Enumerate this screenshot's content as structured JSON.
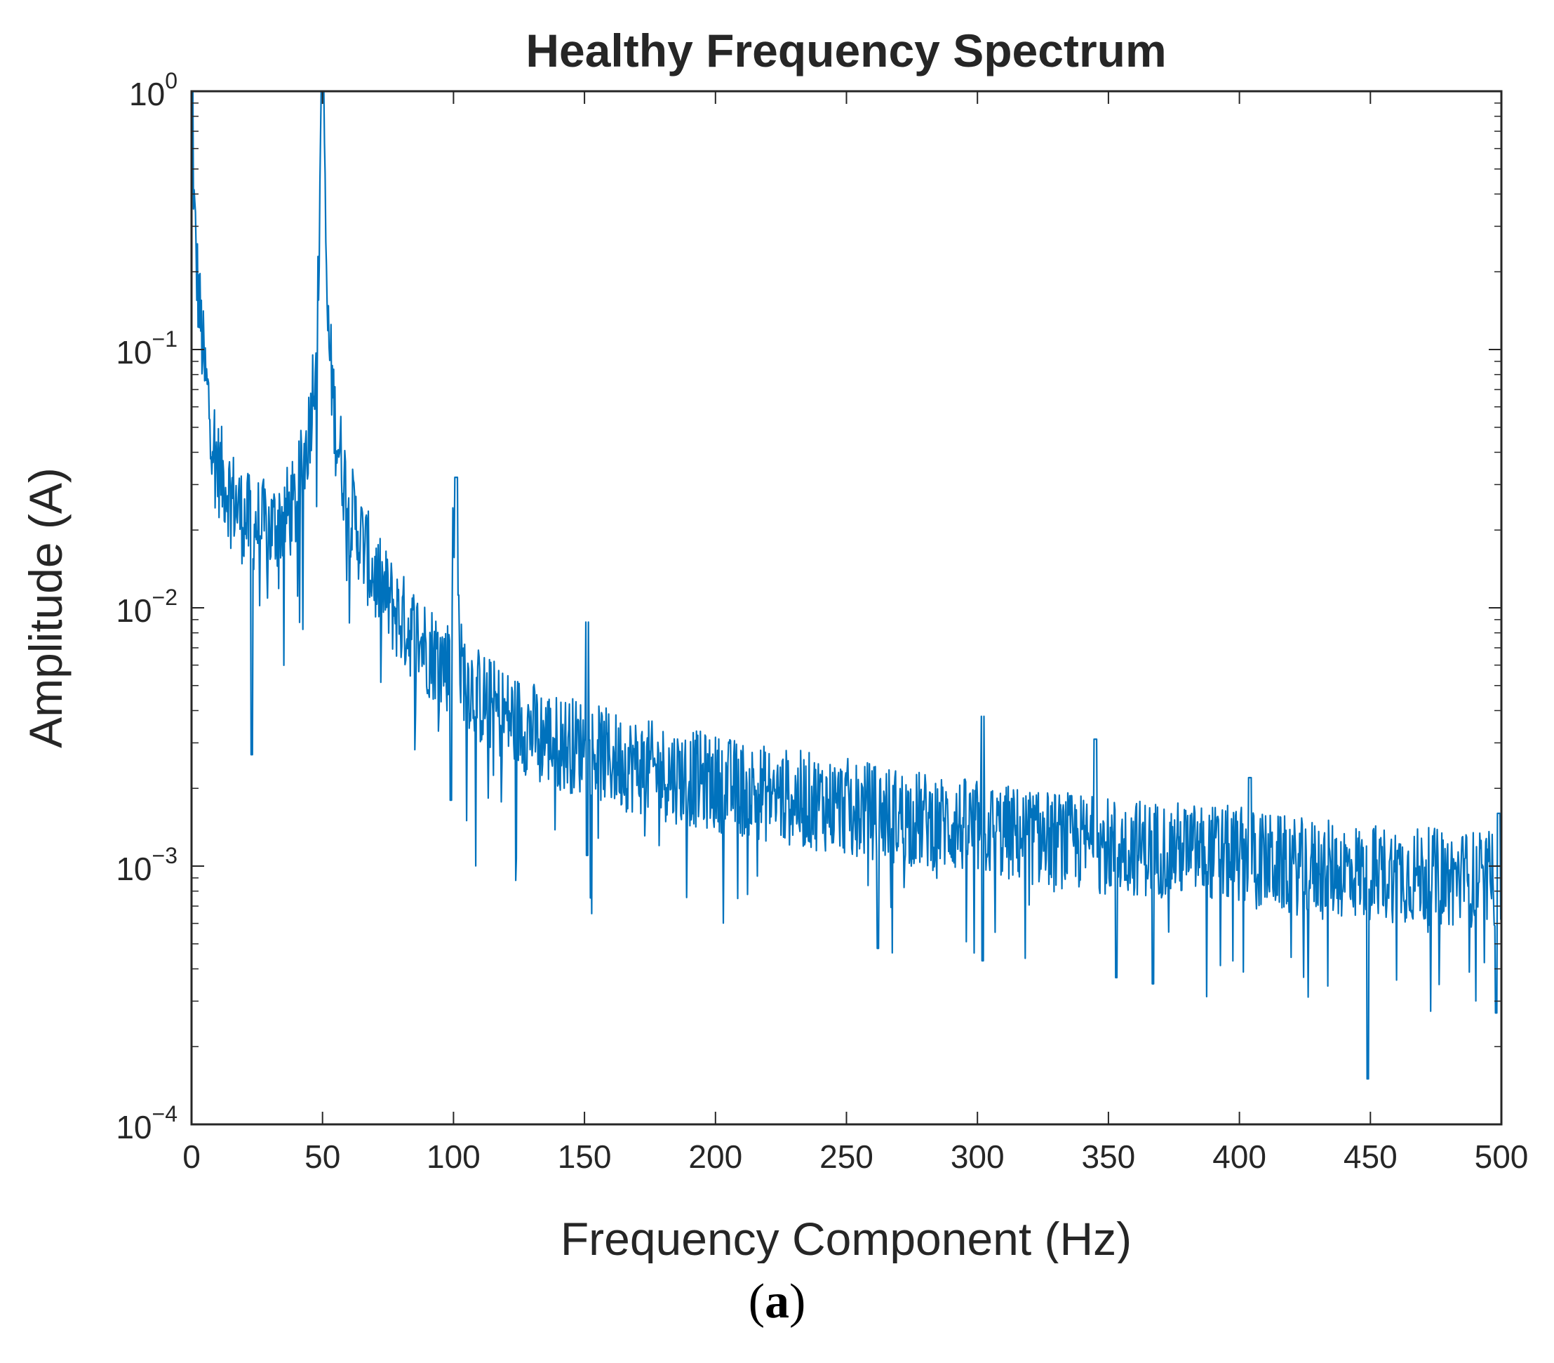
{
  "colors": {
    "series": "#0072BD",
    "axis": "#262626"
  },
  "panel_label": {
    "open": "(",
    "letter": "a",
    "close": ")"
  },
  "chart_data": {
    "type": "line",
    "title": "Healthy Frequency Spectrum",
    "xlabel": "Frequency Component (Hz)",
    "ylabel": "Amplitude (A)",
    "xlim": [
      0,
      500
    ],
    "ylim": [
      0.0001,
      1
    ],
    "yscale": "log",
    "xticks": [
      0,
      50,
      100,
      150,
      200,
      250,
      300,
      350,
      400,
      450,
      500
    ],
    "xtick_labels": [
      "0",
      "50",
      "100",
      "150",
      "200",
      "250",
      "300",
      "350",
      "400",
      "450",
      "500"
    ],
    "ytick_exponents": [
      0,
      -1,
      -2,
      -3,
      -4
    ],
    "ytick_labels": [
      {
        "base": "10",
        "exp": "0"
      },
      {
        "base": "10",
        "exp": "−1"
      },
      {
        "base": "10",
        "exp": "−2"
      },
      {
        "base": "10",
        "exp": "−3"
      },
      {
        "base": "10",
        "exp": "−4"
      }
    ],
    "grid": false,
    "legend": "none",
    "series": [
      {
        "name": "Amplitude",
        "envelope_x": [
          0,
          2,
          5,
          10,
          20,
          30,
          40,
          45,
          48,
          50,
          52,
          55,
          60,
          70,
          80,
          90,
          98,
          100,
          102,
          110,
          120,
          140,
          150,
          160,
          180,
          200,
          220,
          250,
          280,
          300,
          320,
          350,
          380,
          400,
          420,
          450,
          480,
          500
        ],
        "envelope_y": [
          0.6,
          0.2,
          0.08,
          0.035,
          0.022,
          0.02,
          0.025,
          0.05,
          0.12,
          1.0,
          0.12,
          0.05,
          0.025,
          0.013,
          0.009,
          0.007,
          0.006,
          0.02,
          0.006,
          0.0045,
          0.0038,
          0.003,
          0.0029,
          0.0026,
          0.0023,
          0.0021,
          0.0019,
          0.0017,
          0.0015,
          0.0014,
          0.0013,
          0.0012,
          0.00115,
          0.0011,
          0.001,
          0.00095,
          0.0009,
          0.00088
        ],
        "peaks_x": [
          0,
          50,
          101,
          151,
          302,
          345,
          404,
          499
        ],
        "peaks_y": [
          1.0,
          1.0,
          0.032,
          0.0088,
          0.0038,
          0.0031,
          0.0022,
          0.0016
        ],
        "dips_x": [
          23,
          99,
          151,
          262,
          302,
          353,
          367,
          449,
          498
        ],
        "dips_y": [
          0.0027,
          0.0018,
          0.0011,
          0.00048,
          0.00043,
          0.00037,
          0.00035,
          0.00015,
          0.00027
        ]
      }
    ]
  }
}
